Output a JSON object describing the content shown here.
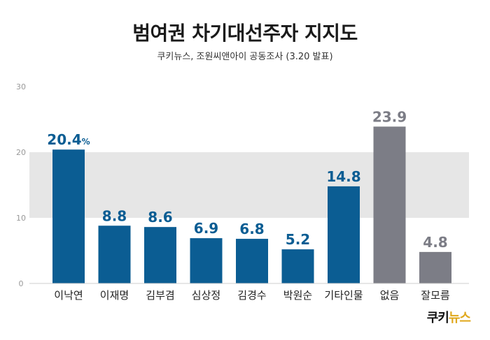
{
  "title": "범여권 차기대선주자 지지도",
  "subtitle": "쿠키뉴스, 조원씨앤아이 공동조사 (3.20 발표)",
  "logo": {
    "part1": "쿠키",
    "part2": "뉴스"
  },
  "colors": {
    "primary": "#0b5d93",
    "muted": "#7c7d86",
    "band": "#e6e6e6",
    "tick": "#999999",
    "logo_accent": "#e0a81c"
  },
  "chart_data": {
    "type": "bar",
    "categories": [
      "이낙연",
      "이재명",
      "김부겸",
      "심상정",
      "김경수",
      "박원순",
      "기타인물",
      "없음",
      "잘모름"
    ],
    "values": [
      20.4,
      8.8,
      8.6,
      6.9,
      6.8,
      5.2,
      14.8,
      23.9,
      4.8
    ],
    "value_labels": [
      "20.4",
      "8.8",
      "8.6",
      "6.9",
      "6.8",
      "5.2",
      "14.8",
      "23.9",
      "4.8"
    ],
    "first_label_unit": "%",
    "bar_colors": [
      "#0b5d93",
      "#0b5d93",
      "#0b5d93",
      "#0b5d93",
      "#0b5d93",
      "#0b5d93",
      "#0b5d93",
      "#7c7d86",
      "#7c7d86"
    ],
    "ylim": [
      0,
      30
    ],
    "yticks": [
      0,
      10,
      20,
      30
    ],
    "grid": "alternating bands",
    "legend": "none"
  }
}
